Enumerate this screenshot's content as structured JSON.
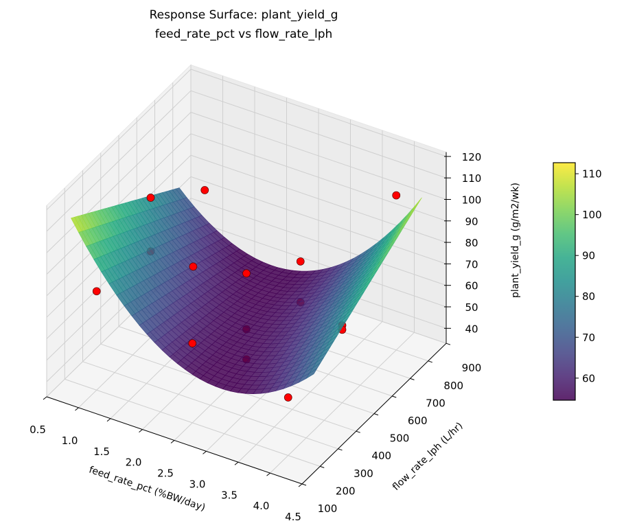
{
  "chart_data": {
    "type": "surface3d",
    "title": "Response Surface: plant_yield_g",
    "subtitle": "feed_rate_pct vs flow_rate_lph",
    "xlabel": "feed_rate_pct (%BW/day)",
    "ylabel": "flow_rate_lph (L/hr)",
    "zlabel": "plant_yield_g (g/m2/wk)",
    "xlim": [
      0.5,
      4.5
    ],
    "ylim": [
      100,
      900
    ],
    "zlim": [
      33,
      122
    ],
    "x_ticks": [
      "0.5",
      "1.0",
      "1.5",
      "2.0",
      "2.5",
      "3.0",
      "3.5",
      "4.0",
      "4.5"
    ],
    "y_ticks": [
      "100",
      "200",
      "300",
      "400",
      "500",
      "600",
      "700",
      "800",
      "900"
    ],
    "z_ticks": [
      "40",
      "50",
      "60",
      "70",
      "80",
      "90",
      "100",
      "110",
      "120"
    ],
    "grid": true,
    "colormap": "viridis",
    "colorbar": {
      "range": [
        54.6,
        112.7
      ],
      "ticks": [
        "60",
        "70",
        "80",
        "90",
        "100",
        "110"
      ]
    },
    "surface": {
      "model": "quadratic",
      "x_range": [
        0.6,
        4.4
      ],
      "y_range": [
        200,
        800
      ],
      "min": 55,
      "corners": {
        "x0.6_y200": 112,
        "x4.4_y800": 105,
        "x0.6_y800": 77,
        "x4.4_y200": 72
      }
    },
    "points_color": "#ff0000",
    "points": [
      {
        "x": 1.0,
        "y": 200,
        "z": 79
      },
      {
        "x": 1.0,
        "y": 500,
        "z": 98
      },
      {
        "x": 1.0,
        "y": 800,
        "z": 77
      },
      {
        "x": 4.0,
        "y": 800,
        "z": 105
      },
      {
        "x": 4.0,
        "y": 200,
        "z": 60
      },
      {
        "x": 1.0,
        "y": 500,
        "z": 73
      },
      {
        "x": 1.75,
        "y": 470,
        "z": 76
      },
      {
        "x": 2.5,
        "y": 500,
        "z": 78
      },
      {
        "x": 2.5,
        "y": 500,
        "z": 52
      },
      {
        "x": 2.5,
        "y": 500,
        "z": 38
      },
      {
        "x": 2.5,
        "y": 800,
        "z": 59
      },
      {
        "x": 2.5,
        "y": 800,
        "z": 40
      },
      {
        "x": 2.5,
        "y": 200,
        "z": 70
      },
      {
        "x": 4.0,
        "y": 500,
        "z": 69
      },
      {
        "x": 4.0,
        "y": 500,
        "z": 67
      }
    ]
  }
}
